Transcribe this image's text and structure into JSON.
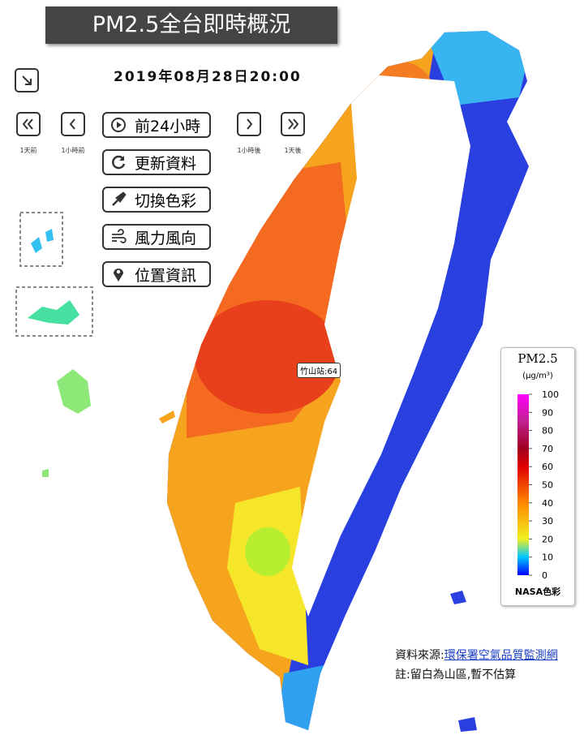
{
  "header": {
    "title": "PM2.5全台即時概況",
    "datetime": "2019年08月28日20:00"
  },
  "time_nav": [
    "1天前",
    "1小時前",
    "1小時後",
    "1天後"
  ],
  "buttons": [
    "前24小時",
    "更新資料",
    "切換色彩",
    "風力風向",
    "位置資訊"
  ],
  "station_label": "竹山站:64",
  "legend": {
    "title": "PM2.5",
    "unit": "(μg/m³)",
    "range": [
      0,
      100
    ],
    "ticks": [
      100,
      90,
      80,
      70,
      60,
      50,
      40,
      30,
      20,
      10,
      0
    ],
    "scheme": "NASA色彩"
  },
  "footer": {
    "source_label": "資料來源:",
    "source_link": "環保署空氣品質監測網",
    "note": "註:留白為山區,暫不估算"
  }
}
